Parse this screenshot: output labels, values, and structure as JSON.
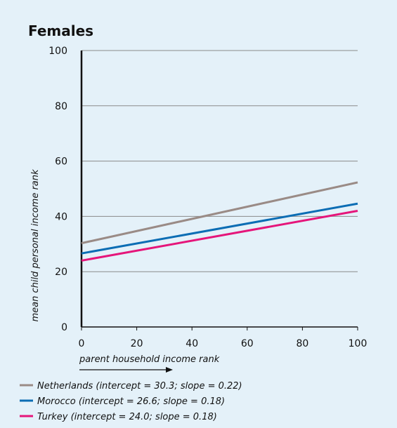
{
  "chart_data": {
    "type": "line",
    "title": "Females",
    "xlabel": "parent household income rank",
    "ylabel": "mean child personal income rank",
    "xlim": [
      0,
      100
    ],
    "ylim": [
      0,
      100
    ],
    "x_ticks": [
      "0",
      "20",
      "40",
      "60",
      "80",
      "100"
    ],
    "y_ticks": [
      "0",
      "20",
      "40",
      "60",
      "80",
      "100"
    ],
    "grid": "horizontal",
    "legend_position": "bottom",
    "series": [
      {
        "name": "Netherlands (intercept = 30.3; slope = 0.22)",
        "color": "#9a8b86",
        "x": [
          0,
          100
        ],
        "y": [
          30.3,
          52.3
        ]
      },
      {
        "name": "Morocco (intercept = 26.6; slope = 0.18)",
        "color": "#0b6db4",
        "x": [
          0,
          100
        ],
        "y": [
          26.6,
          44.6
        ]
      },
      {
        "name": "Turkey (intercept = 24.0; slope = 0.18)",
        "color": "#e5157a",
        "x": [
          0,
          100
        ],
        "y": [
          24.0,
          42.0
        ]
      }
    ]
  }
}
